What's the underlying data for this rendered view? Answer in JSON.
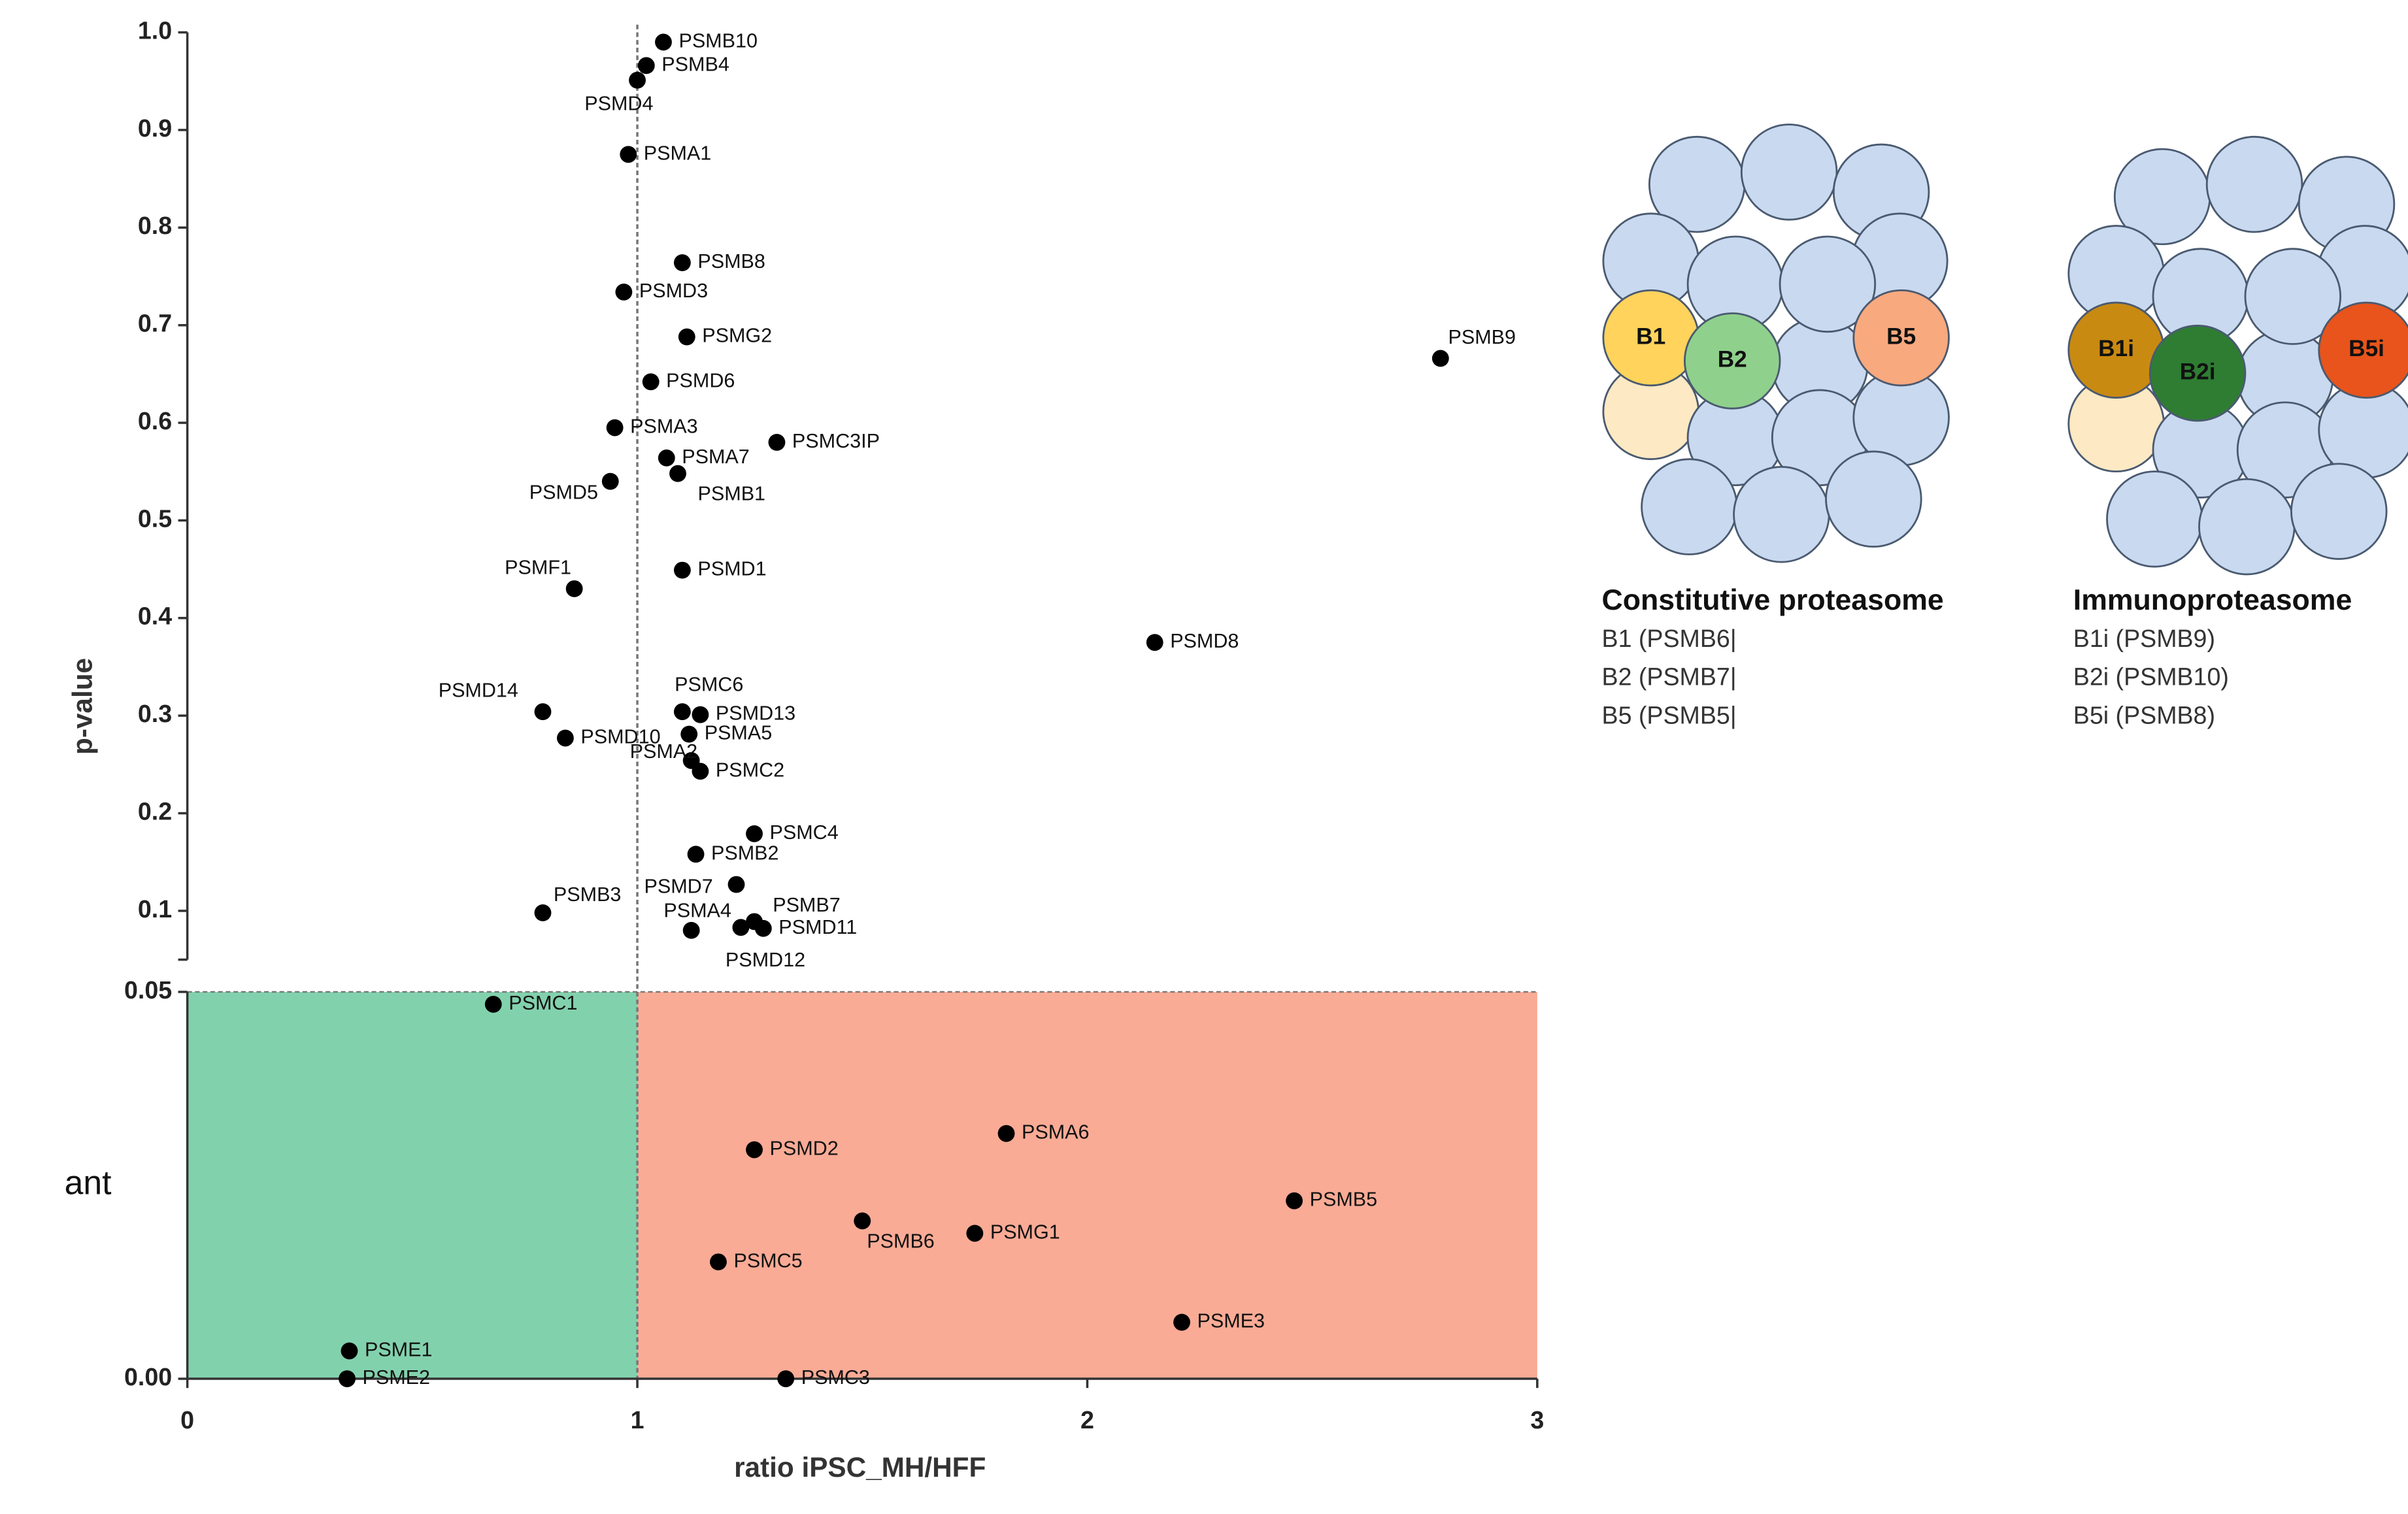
{
  "chart_data": {
    "type": "scatter",
    "xlabel": "ratio iPSC_MH/HFF",
    "ylabel": "p-value",
    "annotation": "ant",
    "xlim": [
      0,
      3
    ],
    "xticks": [
      0,
      1,
      2,
      3
    ],
    "y_segments": [
      {
        "ylim": [
          0,
          0.05
        ],
        "yticks": [
          {
            "value": 0,
            "label": "0.00"
          },
          {
            "value": 0.05,
            "label": "0.05"
          }
        ]
      },
      {
        "ylim": [
          0.05,
          1
        ],
        "yticks": [
          0.1,
          0.2,
          0.3,
          0.4,
          0.5,
          0.6,
          0.7,
          0.8,
          0.9,
          {
            "value": 1,
            "label": "1.0"
          }
        ]
      }
    ],
    "regions": [
      {
        "xlim": [
          0,
          1
        ],
        "color": "#82d1ad"
      },
      {
        "xlim": [
          1,
          3
        ],
        "color": "#f9ab95"
      }
    ],
    "reference_x": 1,
    "reference_y": 0.05,
    "point_color": "#000000",
    "labels": [
      "PSMB10",
      "PSMB4",
      "PSMD4",
      "PSMA1",
      "PSMB8",
      "PSMD3",
      "PSMG2",
      "PSMB9",
      "PSMD6",
      "PSMA3",
      "PSMC3IP",
      "PSMA7",
      "PSMD5",
      "PSMB1",
      "PSMD1",
      "PSMF1",
      "PSMD8",
      "PSMD14",
      "PSMC6",
      "PSMD13",
      "PSMD10",
      "PSMA5",
      "PSMA2",
      "PSMC2",
      "PSMC4",
      "PSMB2",
      "PSMD7",
      "PSMB3",
      "PSMA4",
      "PSMD12",
      "PSMB7",
      "PSMD11",
      "PSMC1",
      "PSMD2",
      "PSMA6",
      "PSMB5",
      "PSMG1",
      "PSMB6",
      "PSMC5",
      "PSME3",
      "PSME1",
      "PSME2",
      "PSMC3"
    ],
    "x": [
      1.058,
      1.02,
      1.0,
      0.98,
      1.1,
      0.97,
      1.11,
      2.785,
      1.03,
      0.95,
      1.31,
      1.065,
      0.94,
      1.09,
      1.1,
      0.86,
      2.15,
      0.79,
      1.1,
      1.14,
      0.84,
      1.115,
      1.12,
      1.14,
      1.26,
      1.13,
      1.22,
      0.79,
      1.12,
      1.23,
      1.26,
      1.28,
      0.68,
      1.26,
      1.82,
      2.46,
      1.75,
      1.5,
      1.18,
      2.21,
      0.36,
      0.355,
      1.33
    ],
    "y": [
      0.99,
      0.966,
      0.951,
      0.875,
      0.764,
      0.734,
      0.688,
      0.666,
      0.642,
      0.595,
      0.58,
      0.564,
      0.54,
      0.548,
      0.449,
      0.43,
      0.375,
      0.304,
      0.304,
      0.301,
      0.277,
      0.281,
      0.254,
      0.243,
      0.179,
      0.158,
      0.127,
      0.098,
      0.08,
      0.083,
      0.089,
      0.082,
      0.0484,
      0.0296,
      0.0317,
      0.023,
      0.0188,
      0.0204,
      0.0151,
      0.0073,
      0.0036,
      0,
      0
    ]
  },
  "panels": [
    {
      "title": "Constitutive proteasome",
      "lines": [
        "B1 (PSMB6|",
        "B2 (PSMB7|",
        "B5 (PSMB5|"
      ],
      "subunits": [
        {
          "label": "B1",
          "color": "#ffd35c"
        },
        {
          "label": "B2",
          "color": "#8fd18c"
        },
        {
          "label": "B5",
          "color": "#f9a97e"
        }
      ]
    },
    {
      "title": "Immunoproteasome",
      "lines": [
        "B1i (PSMB9)",
        "B2i (PSMB10)",
        "B5i (PSMB8)"
      ],
      "subunits": [
        {
          "label": "B1i",
          "color": "#c98a12"
        },
        {
          "label": "B2i",
          "color": "#2e7d32"
        },
        {
          "label": "B5i",
          "color": "#e8541c"
        }
      ]
    }
  ]
}
